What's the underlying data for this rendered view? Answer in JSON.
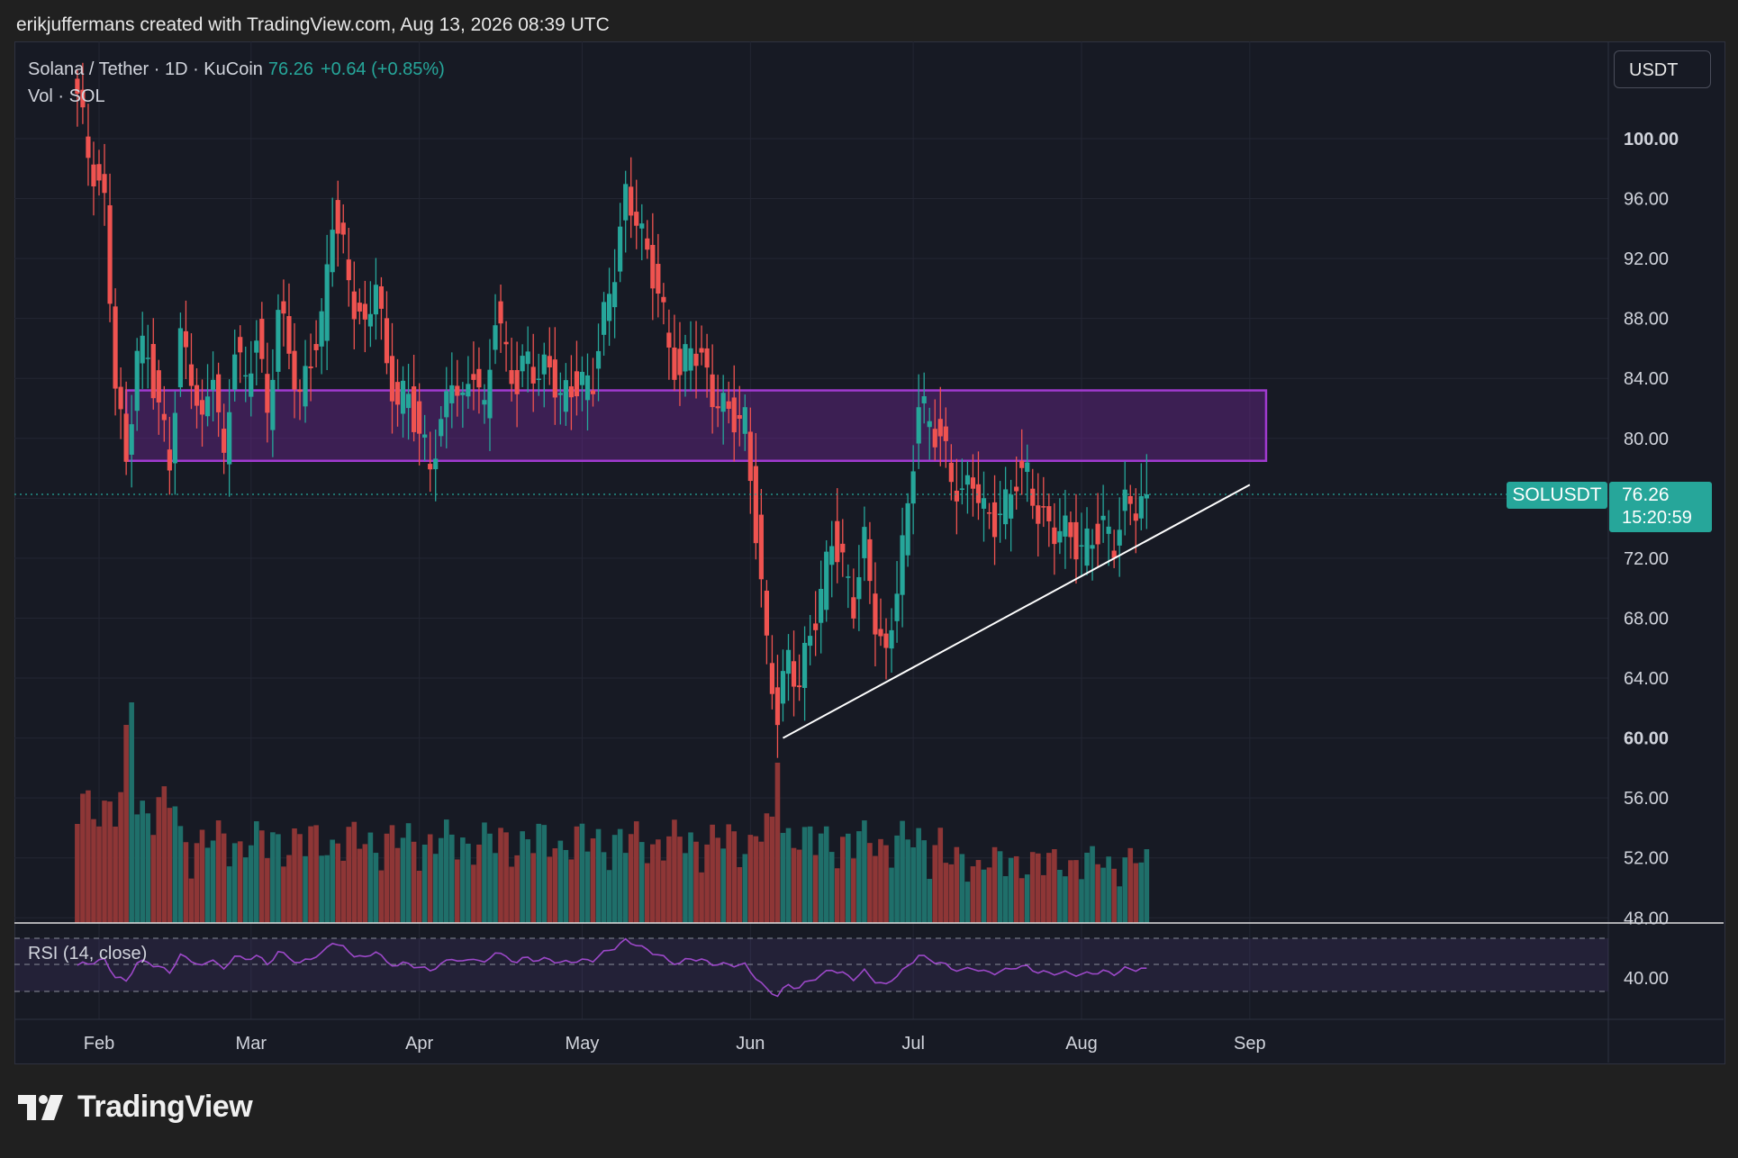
{
  "header": {
    "credit": "erikjuffermans created with TradingView.com, Aug 13, 2026 08:39 UTC"
  },
  "legend": {
    "symbol": "Solana / Tether · 1D · KuCoin",
    "price": "76.26",
    "change": "+0.64 (+0.85%)",
    "volume": "Vol · SOL",
    "rsi": "RSI (14, close)"
  },
  "currency_button": "USDT",
  "last_price": {
    "symbol": "SOLUSDT",
    "price": "76.26",
    "countdown": "15:20:59"
  },
  "brand": {
    "name": "TradingView"
  },
  "colors": {
    "up": "#26a69a",
    "down": "#ef5350",
    "zone": "#a13ad0",
    "rsi": "#9c48c8",
    "trendline": "#ffffff"
  },
  "chart_data": {
    "type": "candlestick",
    "symbol": "SOLUSDT",
    "interval": "1D",
    "exchange": "KuCoin",
    "y_axis": {
      "range": [
        48,
        104
      ],
      "ticks": [
        "100.00",
        "96.00",
        "92.00",
        "88.00",
        "84.00",
        "80.00",
        "76.00",
        "72.00",
        "68.00",
        "64.00",
        "60.00",
        "56.00",
        "52.00",
        "48.00"
      ],
      "bold_ticks": [
        "100.00",
        "60.00"
      ]
    },
    "x_axis": {
      "ticks": [
        {
          "label": "Feb",
          "date": "2026-02-01"
        },
        {
          "label": "Mar",
          "date": "2026-03-01"
        },
        {
          "label": "Apr",
          "date": "2026-04-01"
        },
        {
          "label": "May",
          "date": "2026-05-01"
        },
        {
          "label": "Jun",
          "date": "2026-06-01"
        },
        {
          "label": "Jul",
          "date": "2026-07-01"
        },
        {
          "label": "Aug",
          "date": "2026-08-01"
        },
        {
          "label": "Sep",
          "date": "2026-09-01"
        }
      ]
    },
    "close_series": [
      [
        "2026-01-28",
        103.0
      ],
      [
        "2026-01-30",
        99.0
      ],
      [
        "2026-02-02",
        95.5
      ],
      [
        "2026-02-04",
        84.0
      ],
      [
        "2026-02-06",
        78.0
      ],
      [
        "2026-02-08",
        86.0
      ],
      [
        "2026-02-10",
        85.5
      ],
      [
        "2026-02-12",
        82.0
      ],
      [
        "2026-02-14",
        78.5
      ],
      [
        "2026-02-16",
        86.5
      ],
      [
        "2026-02-18",
        84.5
      ],
      [
        "2026-02-20",
        80.5
      ],
      [
        "2026-02-22",
        85.0
      ],
      [
        "2026-02-24",
        78.0
      ],
      [
        "2026-02-26",
        86.5
      ],
      [
        "2026-02-28",
        83.5
      ],
      [
        "2026-03-02",
        87.0
      ],
      [
        "2026-03-04",
        81.5
      ],
      [
        "2026-03-06",
        88.5
      ],
      [
        "2026-03-08",
        86.0
      ],
      [
        "2026-03-10",
        82.5
      ],
      [
        "2026-03-12",
        85.5
      ],
      [
        "2026-03-14",
        87.5
      ],
      [
        "2026-03-16",
        95.0
      ],
      [
        "2026-03-18",
        92.5
      ],
      [
        "2026-03-20",
        89.0
      ],
      [
        "2026-03-22",
        87.0
      ],
      [
        "2026-03-24",
        91.0
      ],
      [
        "2026-03-26",
        84.5
      ],
      [
        "2026-03-28",
        82.5
      ],
      [
        "2026-03-30",
        83.0
      ],
      [
        "2026-04-01",
        80.0
      ],
      [
        "2026-04-03",
        78.5
      ],
      [
        "2026-04-05",
        80.5
      ],
      [
        "2026-04-07",
        84.5
      ],
      [
        "2026-04-09",
        82.0
      ],
      [
        "2026-04-11",
        85.0
      ],
      [
        "2026-04-13",
        81.5
      ],
      [
        "2026-04-15",
        88.5
      ],
      [
        "2026-04-17",
        85.5
      ],
      [
        "2026-04-19",
        83.5
      ],
      [
        "2026-04-21",
        85.5
      ],
      [
        "2026-04-23",
        84.0
      ],
      [
        "2026-04-25",
        85.0
      ],
      [
        "2026-04-27",
        82.5
      ],
      [
        "2026-04-29",
        83.5
      ],
      [
        "2026-05-01",
        83.5
      ],
      [
        "2026-05-03",
        84.0
      ],
      [
        "2026-05-05",
        88.0
      ],
      [
        "2026-05-07",
        91.5
      ],
      [
        "2026-05-09",
        96.0
      ],
      [
        "2026-05-11",
        95.0
      ],
      [
        "2026-05-13",
        92.0
      ],
      [
        "2026-05-15",
        90.0
      ],
      [
        "2026-05-17",
        86.0
      ],
      [
        "2026-05-19",
        84.0
      ],
      [
        "2026-05-21",
        86.5
      ],
      [
        "2026-05-23",
        85.0
      ],
      [
        "2026-05-25",
        83.0
      ],
      [
        "2026-05-27",
        82.0
      ],
      [
        "2026-05-29",
        81.5
      ],
      [
        "2026-05-31",
        81.0
      ],
      [
        "2026-06-02",
        74.0
      ],
      [
        "2026-06-04",
        66.0
      ],
      [
        "2026-06-06",
        61.5
      ],
      [
        "2026-06-08",
        65.5
      ],
      [
        "2026-06-10",
        63.5
      ],
      [
        "2026-06-12",
        67.0
      ],
      [
        "2026-06-14",
        69.5
      ],
      [
        "2026-06-16",
        73.5
      ],
      [
        "2026-06-18",
        71.5
      ],
      [
        "2026-06-20",
        69.0
      ],
      [
        "2026-06-22",
        73.0
      ],
      [
        "2026-06-24",
        68.0
      ],
      [
        "2026-06-26",
        65.0
      ],
      [
        "2026-06-28",
        70.5
      ],
      [
        "2026-06-30",
        75.0
      ],
      [
        "2026-07-02",
        82.5
      ],
      [
        "2026-07-04",
        81.0
      ],
      [
        "2026-07-06",
        80.0
      ],
      [
        "2026-07-08",
        77.5
      ],
      [
        "2026-07-10",
        76.0
      ],
      [
        "2026-07-12",
        77.5
      ],
      [
        "2026-07-14",
        75.0
      ],
      [
        "2026-07-16",
        74.5
      ],
      [
        "2026-07-18",
        75.5
      ],
      [
        "2026-07-20",
        77.5
      ],
      [
        "2026-07-22",
        77.5
      ],
      [
        "2026-07-24",
        75.0
      ],
      [
        "2026-07-26",
        74.0
      ],
      [
        "2026-07-28",
        74.0
      ],
      [
        "2026-07-30",
        73.5
      ],
      [
        "2026-08-01",
        72.5
      ],
      [
        "2026-08-03",
        73.5
      ],
      [
        "2026-08-05",
        74.0
      ],
      [
        "2026-08-07",
        73.0
      ],
      [
        "2026-08-09",
        75.5
      ],
      [
        "2026-08-11",
        75.6
      ],
      [
        "2026-08-13",
        76.26
      ]
    ],
    "annotations": {
      "resistance_zone": {
        "low": 78.5,
        "high": 83.2,
        "from": "2026-02-06",
        "to": "2026-09-04",
        "color": "#a13ad0"
      },
      "ascending_trendline": {
        "from": [
          "2026-06-07",
          60.0
        ],
        "to": [
          "2026-09-01",
          76.9
        ],
        "color": "#ffffff"
      },
      "last_price_line": 76.26
    },
    "volume": {
      "label": "Vol · SOL",
      "peaks": [
        [
          "2026-02-07",
          "max"
        ],
        [
          "2026-06-05",
          "spike"
        ]
      ]
    },
    "rsi": {
      "label": "RSI (14, close)",
      "period": 14,
      "y_ticks": [
        "40.00"
      ],
      "bands": [
        30,
        50,
        70
      ]
    }
  }
}
